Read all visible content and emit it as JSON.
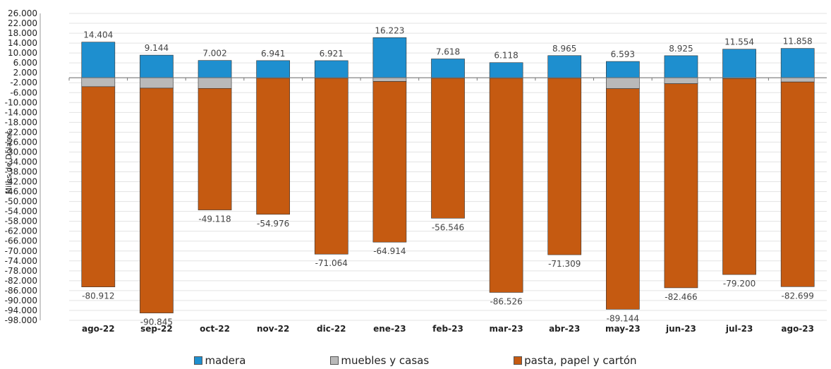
{
  "chart_data": {
    "type": "bar",
    "stacked": true,
    "title": "",
    "xlabel": "",
    "ylabel": "Miles de Dólares",
    "ylim": [
      -98000,
      26000
    ],
    "ytick_step": 4000,
    "ytick_labels": [
      "26.000",
      "22.000",
      "18.000",
      "14.000",
      "10.000",
      "6.000",
      "2.000",
      "-2.000",
      "-6.000",
      "-10.000",
      "-14.000",
      "-18.000",
      "-22.000",
      "-26.000",
      "-30.000",
      "-34.000",
      "-38.000",
      "-42.000",
      "-46.000",
      "-50.000",
      "-54.000",
      "-58.000",
      "-62.000",
      "-66.000",
      "-70.000",
      "-74.000",
      "-78.000",
      "-82.000",
      "-86.000",
      "-90.000",
      "-94.000",
      "-98.000"
    ],
    "grid": true,
    "legend_position": "bottom",
    "categories": [
      "ago-22",
      "sep-22",
      "oct-22",
      "nov-22",
      "dic-22",
      "ene-23",
      "feb-23",
      "mar-23",
      "abr-23",
      "may-23",
      "jun-23",
      "jul-23",
      "ago-23"
    ],
    "series": [
      {
        "name": "madera",
        "color": "#1E8FCF",
        "values": [
          14404,
          9144,
          7002,
          6941,
          6921,
          16223,
          7618,
          6118,
          8965,
          6593,
          8925,
          11554,
          11858
        ],
        "labels": [
          "14.404",
          "9.144",
          "7.002",
          "6.941",
          "6.921",
          "16.223",
          "7.618",
          "6.118",
          "8.965",
          "6.593",
          "8.925",
          "11.554",
          "11.858"
        ]
      },
      {
        "name": "muebles y casas",
        "color": "#B9B9B9",
        "values": [
          -3600,
          -4200,
          -4300,
          -200,
          -200,
          -1500,
          -200,
          -200,
          -200,
          -4400,
          -2400,
          -300,
          -1700
        ]
      },
      {
        "name": "pasta, papel y cartón",
        "color": "#C55A11",
        "values": [
          -80912,
          -90845,
          -49118,
          -54976,
          -71064,
          -64914,
          -56546,
          -86526,
          -71309,
          -89144,
          -82466,
          -79200,
          -82699
        ],
        "labels": [
          "-80.912",
          "-90.845",
          "-49.118",
          "-54.976",
          "-71.064",
          "-64.914",
          "-56.546",
          "-86.526",
          "-71.309",
          "-89.144",
          "-82.466",
          "-79.200",
          "-82.699"
        ]
      }
    ]
  }
}
